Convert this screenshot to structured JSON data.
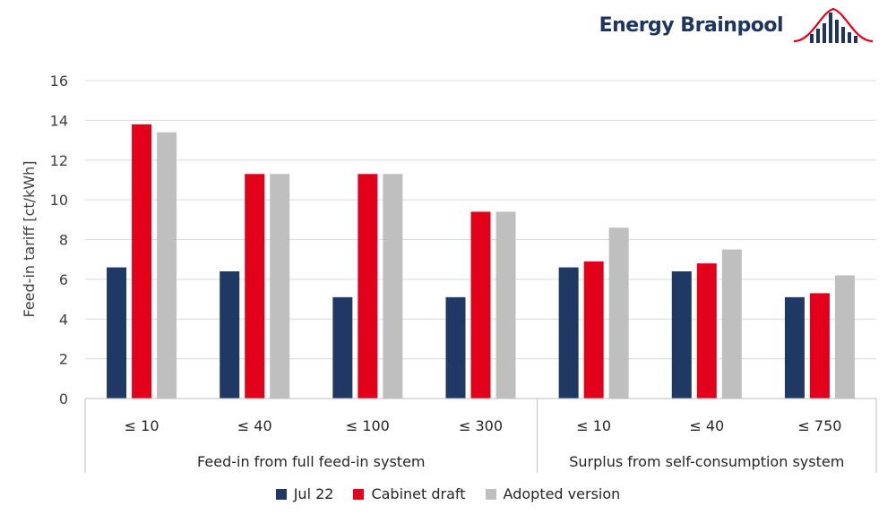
{
  "brand": {
    "name": "Energy Brainpool",
    "logo_icon": "bell-curve-bars-icon"
  },
  "chart_data": {
    "type": "bar",
    "ylabel": "Feed-in tariff  [ct/kWh]",
    "ylim": [
      0,
      16
    ],
    "yticks": [
      "0",
      "2",
      "4",
      "6",
      "8",
      "10",
      "12",
      "14",
      "16"
    ],
    "grid": true,
    "legend_position": "bottom",
    "categories": [
      "≤ 10",
      "≤ 40",
      "≤ 100",
      "≤ 300",
      "≤ 10",
      "≤ 40",
      "≤ 750"
    ],
    "groups": [
      {
        "label": "Feed-in from full feed-in system",
        "count": 4
      },
      {
        "label": "Surplus from self-consumption system",
        "count": 3
      }
    ],
    "series": [
      {
        "name": "Jul 22",
        "color": "#1f3864",
        "values": [
          6.6,
          6.4,
          5.1,
          5.1,
          6.6,
          6.4,
          5.1
        ]
      },
      {
        "name": "Cabinet draft",
        "color": "#e3001b",
        "values": [
          13.8,
          11.3,
          11.3,
          9.4,
          6.9,
          6.8,
          5.3
        ]
      },
      {
        "name": "Adopted version",
        "color": "#bfbfbf",
        "values": [
          13.4,
          11.3,
          11.3,
          9.4,
          8.6,
          7.5,
          6.2
        ]
      }
    ]
  }
}
